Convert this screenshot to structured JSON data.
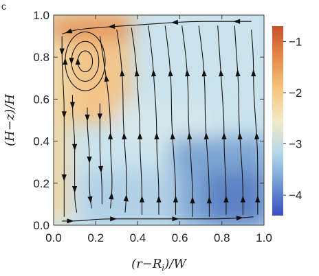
{
  "panel_label": "c",
  "chart_data": {
    "type": "heatmap",
    "subtype": "streamplot",
    "xlabel": "(r−R",
    "xlabel_sub": "i",
    "xlabel_rest": ")/W",
    "ylabel": "(H−z)/H",
    "xlim": [
      0.0,
      1.0
    ],
    "ylim": [
      0.0,
      1.0
    ],
    "x_ticks": [
      0.0,
      0.2,
      0.4,
      0.6,
      0.8,
      1.0
    ],
    "x_tick_labels": [
      "0.0",
      "0.2",
      "0.4",
      "0.6",
      "0.8",
      "1.0"
    ],
    "y_ticks": [
      0.0,
      0.2,
      0.4,
      0.6,
      0.8,
      1.0
    ],
    "y_tick_labels": [
      "0.0",
      "0.2",
      "0.4",
      "0.6",
      "0.8",
      "1.0"
    ],
    "colorbar": {
      "range": [
        -4.4,
        -0.7
      ],
      "ticks": [
        -1,
        -2,
        -3,
        -4
      ],
      "tick_labels": [
        "−1",
        "−2",
        "−3",
        "−4"
      ],
      "colormap_stops": [
        "#3b4cc0",
        "#6f9ad3",
        "#b7d8e8",
        "#f3e9c6",
        "#f6c47e",
        "#e58b4b",
        "#c4522a"
      ]
    },
    "grid": false,
    "legend": "none",
    "circulation": "single clockwise roll: upflow in the outer region (larger r), downflow near the inner wall (r≈R_i), with a secondary vortex near (0.15, 0.78)",
    "streamlines": [
      {
        "x": [
          0.97,
          0.97,
          0.97,
          0.96,
          0.95,
          0.95,
          0.94
        ],
        "y": [
          0.05,
          0.2,
          0.35,
          0.5,
          0.65,
          0.8,
          0.93
        ]
      },
      {
        "x": [
          0.9,
          0.9,
          0.89,
          0.88,
          0.88,
          0.87,
          0.86
        ],
        "y": [
          0.05,
          0.2,
          0.35,
          0.5,
          0.65,
          0.8,
          0.95
        ]
      },
      {
        "x": [
          0.82,
          0.82,
          0.81,
          0.81,
          0.8,
          0.79,
          0.78
        ],
        "y": [
          0.05,
          0.2,
          0.35,
          0.5,
          0.65,
          0.8,
          0.95
        ]
      },
      {
        "x": [
          0.74,
          0.74,
          0.73,
          0.72,
          0.72,
          0.71,
          0.69
        ],
        "y": [
          0.04,
          0.2,
          0.35,
          0.5,
          0.65,
          0.8,
          0.95
        ]
      },
      {
        "x": [
          0.66,
          0.66,
          0.65,
          0.64,
          0.64,
          0.63,
          0.61
        ],
        "y": [
          0.04,
          0.2,
          0.35,
          0.5,
          0.65,
          0.8,
          0.95
        ]
      },
      {
        "x": [
          0.58,
          0.58,
          0.57,
          0.56,
          0.56,
          0.55,
          0.53
        ],
        "y": [
          0.05,
          0.2,
          0.35,
          0.5,
          0.65,
          0.8,
          0.95
        ]
      },
      {
        "x": [
          0.5,
          0.5,
          0.49,
          0.49,
          0.48,
          0.47,
          0.45
        ],
        "y": [
          0.05,
          0.2,
          0.35,
          0.5,
          0.65,
          0.8,
          0.95
        ]
      },
      {
        "x": [
          0.42,
          0.42,
          0.41,
          0.41,
          0.4,
          0.39,
          0.37
        ],
        "y": [
          0.05,
          0.2,
          0.35,
          0.5,
          0.65,
          0.8,
          0.94
        ]
      },
      {
        "x": [
          0.34,
          0.35,
          0.34,
          0.33,
          0.33,
          0.32,
          0.3
        ],
        "y": [
          0.06,
          0.2,
          0.35,
          0.5,
          0.65,
          0.8,
          0.93
        ]
      },
      {
        "x": [
          0.27,
          0.28,
          0.27,
          0.27,
          0.26,
          0.24,
          0.22
        ],
        "y": [
          0.08,
          0.2,
          0.35,
          0.5,
          0.63,
          0.77,
          0.9
        ]
      },
      {
        "x": [
          0.04,
          0.12,
          0.22,
          0.35,
          0.5,
          0.66,
          0.82,
          0.95
        ],
        "y": [
          0.02,
          0.02,
          0.03,
          0.03,
          0.03,
          0.03,
          0.03,
          0.04
        ]
      },
      {
        "x": [
          0.94,
          0.8,
          0.65,
          0.5,
          0.35,
          0.2,
          0.1,
          0.04
        ],
        "y": [
          0.97,
          0.97,
          0.97,
          0.96,
          0.95,
          0.94,
          0.93,
          0.91
        ]
      },
      {
        "x": [
          0.04,
          0.04,
          0.05,
          0.05,
          0.05,
          0.05,
          0.05
        ],
        "y": [
          0.9,
          0.75,
          0.6,
          0.45,
          0.3,
          0.15,
          0.04
        ]
      },
      {
        "x": [
          0.09,
          0.09,
          0.1,
          0.1,
          0.1,
          0.1,
          0.11
        ],
        "y": [
          0.62,
          0.52,
          0.42,
          0.32,
          0.22,
          0.12,
          0.06
        ]
      },
      {
        "x": [
          0.16,
          0.16,
          0.17,
          0.17,
          0.17,
          0.18
        ],
        "y": [
          0.56,
          0.46,
          0.36,
          0.26,
          0.16,
          0.08
        ]
      },
      {
        "x": [
          0.22,
          0.22,
          0.22,
          0.23,
          0.23
        ],
        "y": [
          0.58,
          0.45,
          0.33,
          0.2,
          0.1
        ]
      }
    ],
    "vortex": {
      "cx": 0.15,
      "cy": 0.78,
      "rings": [
        {
          "rx": 0.035,
          "ry": 0.05
        },
        {
          "rx": 0.065,
          "ry": 0.095
        },
        {
          "rx": 0.095,
          "ry": 0.14
        }
      ]
    }
  }
}
